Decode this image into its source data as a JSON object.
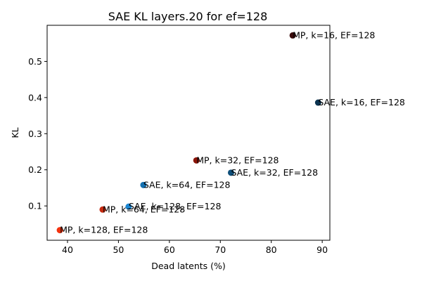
{
  "chart_data": {
    "type": "scatter",
    "title": "SAE KL layers.20 for ef=128",
    "xlabel": "Dead latents (%)",
    "ylabel": "KL",
    "xlim": [
      36,
      91.5
    ],
    "ylim": [
      0.005,
      0.6
    ],
    "xticks": [
      40,
      50,
      60,
      70,
      80,
      90
    ],
    "yticks": [
      0.1,
      0.2,
      0.3,
      0.4,
      0.5
    ],
    "grid": false,
    "points": [
      {
        "label": "MP, k=16, EF=128",
        "x": 84.2,
        "y": 0.572,
        "color": "#3a0c0c"
      },
      {
        "label": "SAE, k=16, EF=128",
        "x": 89.2,
        "y": 0.386,
        "color": "#0b3350"
      },
      {
        "label": "MP, k=32, EF=128",
        "x": 65.3,
        "y": 0.226,
        "color": "#8a1408"
      },
      {
        "label": "SAE, k=32, EF=128",
        "x": 72.1,
        "y": 0.192,
        "color": "#0e4f7a"
      },
      {
        "label": "SAE, k=64, EF=128",
        "x": 54.9,
        "y": 0.158,
        "color": "#1470b0"
      },
      {
        "label": "SAE, k=128, EF=128",
        "x": 52.0,
        "y": 0.098,
        "color": "#1b86d2"
      },
      {
        "label": "MP, k=64, EF=128",
        "x": 46.9,
        "y": 0.09,
        "color": "#c52a10"
      },
      {
        "label": "MP, k=128, EF=128",
        "x": 38.5,
        "y": 0.033,
        "color": "#f2320e"
      }
    ]
  }
}
